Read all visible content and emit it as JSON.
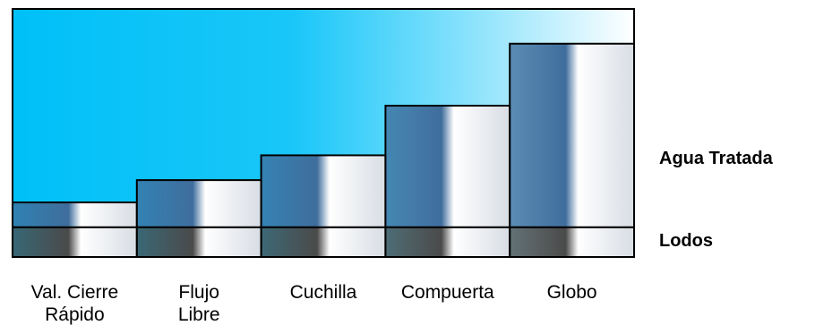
{
  "chart_data": {
    "type": "stacked-bar",
    "categories": [
      "Val. Cierre\nRápido",
      "Flujo\nLibre",
      "Cuchilla",
      "Compuerta",
      "Globo"
    ],
    "series": [
      {
        "name": "Lodos",
        "color": "#4a4a4a",
        "values": [
          12,
          12,
          12,
          12,
          12
        ]
      },
      {
        "name": "Agua Tratada",
        "color": "#3f6d9c",
        "values": [
          10,
          19,
          29,
          49,
          74
        ]
      }
    ],
    "background_color": "#00c0f8",
    "ylim": [
      0,
      100
    ]
  }
}
